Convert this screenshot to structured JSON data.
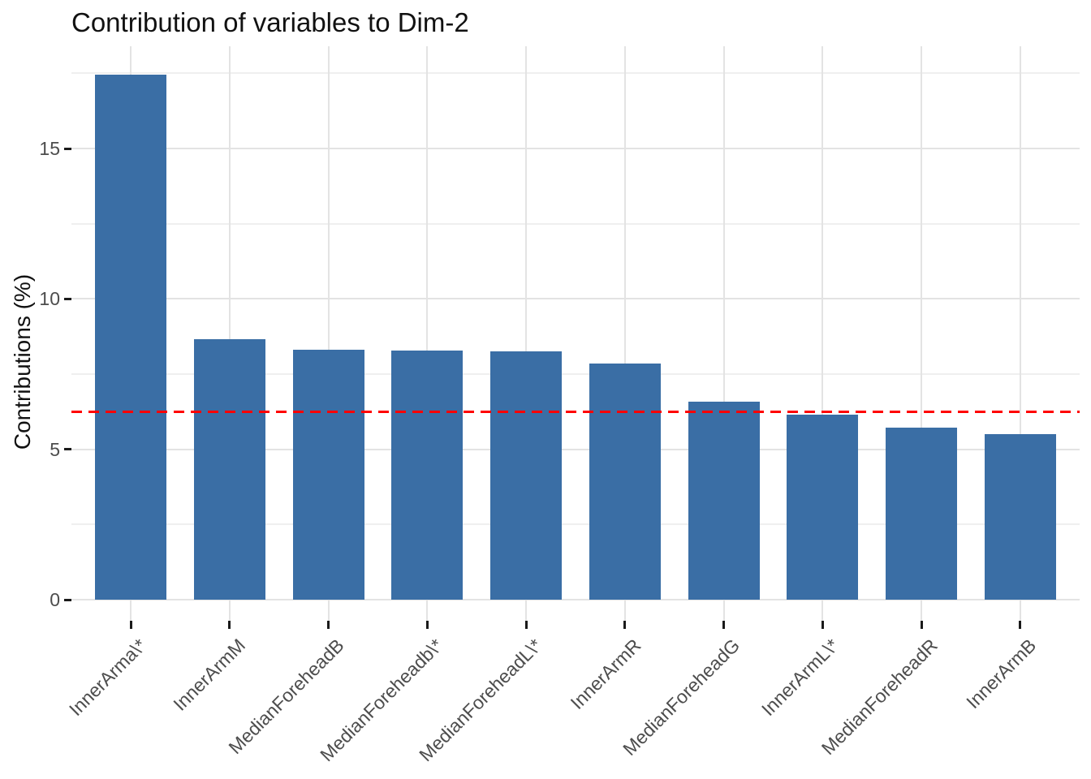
{
  "chart_data": {
    "type": "bar",
    "title": "Contribution of variables to Dim-2",
    "ylabel": "Contributions (%)",
    "xlabel": "",
    "categories": [
      "InnerArma\\*",
      "InnerArmM",
      "MedianForeheadB",
      "MedianForeheadb\\*",
      "MedianForeheadL\\*",
      "InnerArmR",
      "MedianForeheadG",
      "InnerArmL\\*",
      "MedianForeheadR",
      "InnerArmB"
    ],
    "values": [
      17.45,
      8.66,
      8.31,
      8.28,
      8.25,
      7.85,
      6.59,
      6.16,
      5.73,
      5.51
    ],
    "y_ticks": [
      0,
      5,
      10,
      15
    ],
    "y_minor_ticks": [
      2.5,
      7.5,
      12.5,
      17.5
    ],
    "ylim": [
      -0.7,
      18.4
    ],
    "x_label_angle": 45,
    "grid": true,
    "legend": "none",
    "reference_line": {
      "value": 6.25,
      "style": "dashed",
      "color": "#ff0000"
    },
    "bar_color": "#3a6ea5",
    "colors": {
      "grid_major": "#e3e3e3",
      "grid_minor": "#efefef",
      "tick_text": "#4d4d4d",
      "title_text": "#111111",
      "tick_mark": "#1a1a1a",
      "background": "#ffffff"
    }
  }
}
